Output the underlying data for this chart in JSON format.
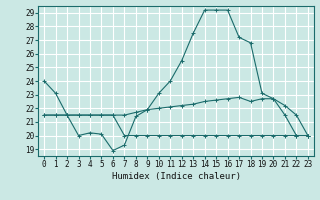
{
  "xlabel": "Humidex (Indice chaleur)",
  "ylabel": "",
  "bg_color": "#cbe8e4",
  "grid_color": "#ffffff",
  "line_color": "#1a6b6b",
  "xlim": [
    -0.5,
    23.5
  ],
  "ylim": [
    18.5,
    29.5
  ],
  "xticks": [
    0,
    1,
    2,
    3,
    4,
    5,
    6,
    7,
    8,
    9,
    10,
    11,
    12,
    13,
    14,
    15,
    16,
    17,
    18,
    19,
    20,
    21,
    22,
    23
  ],
  "yticks": [
    19,
    20,
    21,
    22,
    23,
    24,
    25,
    26,
    27,
    28,
    29
  ],
  "series": [
    [
      24.0,
      23.1,
      21.5,
      20.0,
      20.2,
      20.1,
      18.9,
      19.3,
      21.4,
      21.9,
      23.1,
      24.0,
      25.5,
      27.5,
      29.2,
      29.2,
      29.2,
      27.2,
      26.8,
      23.1,
      22.7,
      22.2,
      21.5,
      20.0
    ],
    [
      21.5,
      21.5,
      21.5,
      21.5,
      21.5,
      21.5,
      21.5,
      20.0,
      20.0,
      20.0,
      20.0,
      20.0,
      20.0,
      20.0,
      20.0,
      20.0,
      20.0,
      20.0,
      20.0,
      20.0,
      20.0,
      20.0,
      20.0,
      20.0
    ],
    [
      21.5,
      21.5,
      21.5,
      21.5,
      21.5,
      21.5,
      21.5,
      21.5,
      21.7,
      21.9,
      22.0,
      22.1,
      22.2,
      22.3,
      22.5,
      22.6,
      22.7,
      22.8,
      22.5,
      22.7,
      22.7,
      21.5,
      20.0,
      20.0
    ]
  ]
}
